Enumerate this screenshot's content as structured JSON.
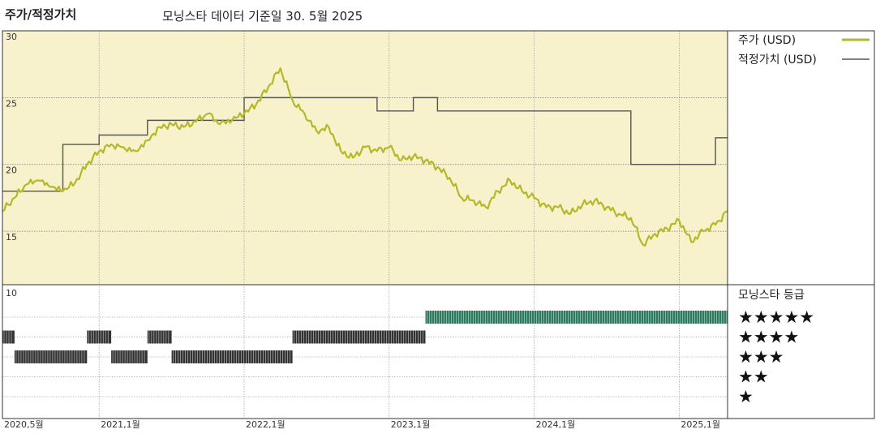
{
  "header": {
    "title": "주가/적정가치",
    "subtitle": "모닝스타 데이터 기준일 30. 5월 2025"
  },
  "legend": {
    "price_label": "주가 (USD)",
    "fair_value_label": "적정가치 (USD)",
    "rating_title": "모닝스타 등급",
    "rating_labels": [
      "★★★★★",
      "★★★★",
      "★★★",
      "★★",
      "★"
    ]
  },
  "colors": {
    "price": "#b5b82a",
    "fair_value": "#555555",
    "plot_bg": "#f7f2cc",
    "five_star": "#2d7a5e",
    "rating_bar": "#333333"
  },
  "chart_data": {
    "type": "line",
    "x_tick_labels": [
      "2020,5월",
      "2021,1월",
      "2022,1월",
      "2023,1월",
      "2024,1월",
      "2025,1월"
    ],
    "x_tick_dates": [
      "2020-05",
      "2021-01",
      "2022-01",
      "2023-01",
      "2024-01",
      "2025-01"
    ],
    "x_range": [
      "2020-05",
      "2025-05"
    ],
    "y_ticks": [
      15,
      20,
      25,
      30
    ],
    "ylim": [
      11,
      30
    ],
    "grid": true,
    "legend_position": "right",
    "series": [
      {
        "name": "주가 (USD)",
        "points": [
          [
            "2020-05",
            16.5
          ],
          [
            "2020-06",
            17.5
          ],
          [
            "2020-07",
            18.5
          ],
          [
            "2020-08",
            18.8
          ],
          [
            "2020-09",
            18.3
          ],
          [
            "2020-10",
            18.0
          ],
          [
            "2020-11",
            18.6
          ],
          [
            "2020-12",
            20.0
          ],
          [
            "2021-01",
            21.0
          ],
          [
            "2021-02",
            21.5
          ],
          [
            "2021-03",
            21.3
          ],
          [
            "2021-04",
            21.0
          ],
          [
            "2021-05",
            21.8
          ],
          [
            "2021-06",
            22.8
          ],
          [
            "2021-07",
            23.0
          ],
          [
            "2021-08",
            22.8
          ],
          [
            "2021-09",
            23.2
          ],
          [
            "2021-10",
            23.8
          ],
          [
            "2021-11",
            23.0
          ],
          [
            "2021-12",
            23.3
          ],
          [
            "2022-01",
            23.8
          ],
          [
            "2022-02",
            24.5
          ],
          [
            "2022-03",
            25.8
          ],
          [
            "2022-04",
            27.2
          ],
          [
            "2022-05",
            24.8
          ],
          [
            "2022-06",
            23.8
          ],
          [
            "2022-07",
            22.5
          ],
          [
            "2022-08",
            22.8
          ],
          [
            "2022-09",
            21.0
          ],
          [
            "2022-10",
            20.5
          ],
          [
            "2022-11",
            21.3
          ],
          [
            "2022-12",
            21.0
          ],
          [
            "2023-01",
            21.3
          ],
          [
            "2023-02",
            20.3
          ],
          [
            "2023-03",
            20.6
          ],
          [
            "2023-04",
            20.3
          ],
          [
            "2023-05",
            19.8
          ],
          [
            "2023-06",
            19.0
          ],
          [
            "2023-07",
            17.5
          ],
          [
            "2023-08",
            17.3
          ],
          [
            "2023-09",
            16.8
          ],
          [
            "2023-10",
            18.0
          ],
          [
            "2023-11",
            18.8
          ],
          [
            "2023-12",
            18.0
          ],
          [
            "2024-01",
            17.5
          ],
          [
            "2024-02",
            16.8
          ],
          [
            "2024-03",
            16.8
          ],
          [
            "2024-04",
            16.3
          ],
          [
            "2024-05",
            17.0
          ],
          [
            "2024-06",
            17.3
          ],
          [
            "2024-07",
            16.8
          ],
          [
            "2024-08",
            16.3
          ],
          [
            "2024-09",
            16.0
          ],
          [
            "2024-10",
            14.0
          ],
          [
            "2024-11",
            14.8
          ],
          [
            "2024-12",
            15.2
          ],
          [
            "2025-01",
            15.8
          ],
          [
            "2025-02",
            14.2
          ],
          [
            "2025-03",
            15.0
          ],
          [
            "2025-04",
            15.5
          ],
          [
            "2025-05",
            16.5
          ]
        ]
      },
      {
        "name": "적정가치 (USD)",
        "step": true,
        "points": [
          [
            "2020-05",
            18.0
          ],
          [
            "2020-10",
            18.0
          ],
          [
            "2020-10",
            21.5
          ],
          [
            "2021-01",
            21.5
          ],
          [
            "2021-01",
            22.2
          ],
          [
            "2021-05",
            22.2
          ],
          [
            "2021-05",
            23.3
          ],
          [
            "2022-01",
            23.3
          ],
          [
            "2022-01",
            25.0
          ],
          [
            "2022-12",
            25.0
          ],
          [
            "2022-12",
            24.0
          ],
          [
            "2023-03",
            24.0
          ],
          [
            "2023-03",
            25.0
          ],
          [
            "2023-05",
            25.0
          ],
          [
            "2023-05",
            24.0
          ],
          [
            "2024-09",
            24.0
          ],
          [
            "2024-09",
            20.0
          ],
          [
            "2025-04",
            20.0
          ],
          [
            "2025-04",
            22.0
          ],
          [
            "2025-05",
            22.0
          ]
        ]
      }
    ],
    "rating_history": [
      {
        "stars": 4,
        "start": "2020-05",
        "end": "2020-06"
      },
      {
        "stars": 3,
        "start": "2020-06",
        "end": "2020-12"
      },
      {
        "stars": 4,
        "start": "2020-12",
        "end": "2021-02"
      },
      {
        "stars": 3,
        "start": "2021-02",
        "end": "2021-05"
      },
      {
        "stars": 4,
        "start": "2021-05",
        "end": "2021-07"
      },
      {
        "stars": 3,
        "start": "2021-07",
        "end": "2022-05"
      },
      {
        "stars": 4,
        "start": "2022-05",
        "end": "2023-04"
      },
      {
        "stars": 5,
        "start": "2023-04",
        "end": "2025-05"
      }
    ],
    "rating_axis_top_label": "10"
  }
}
